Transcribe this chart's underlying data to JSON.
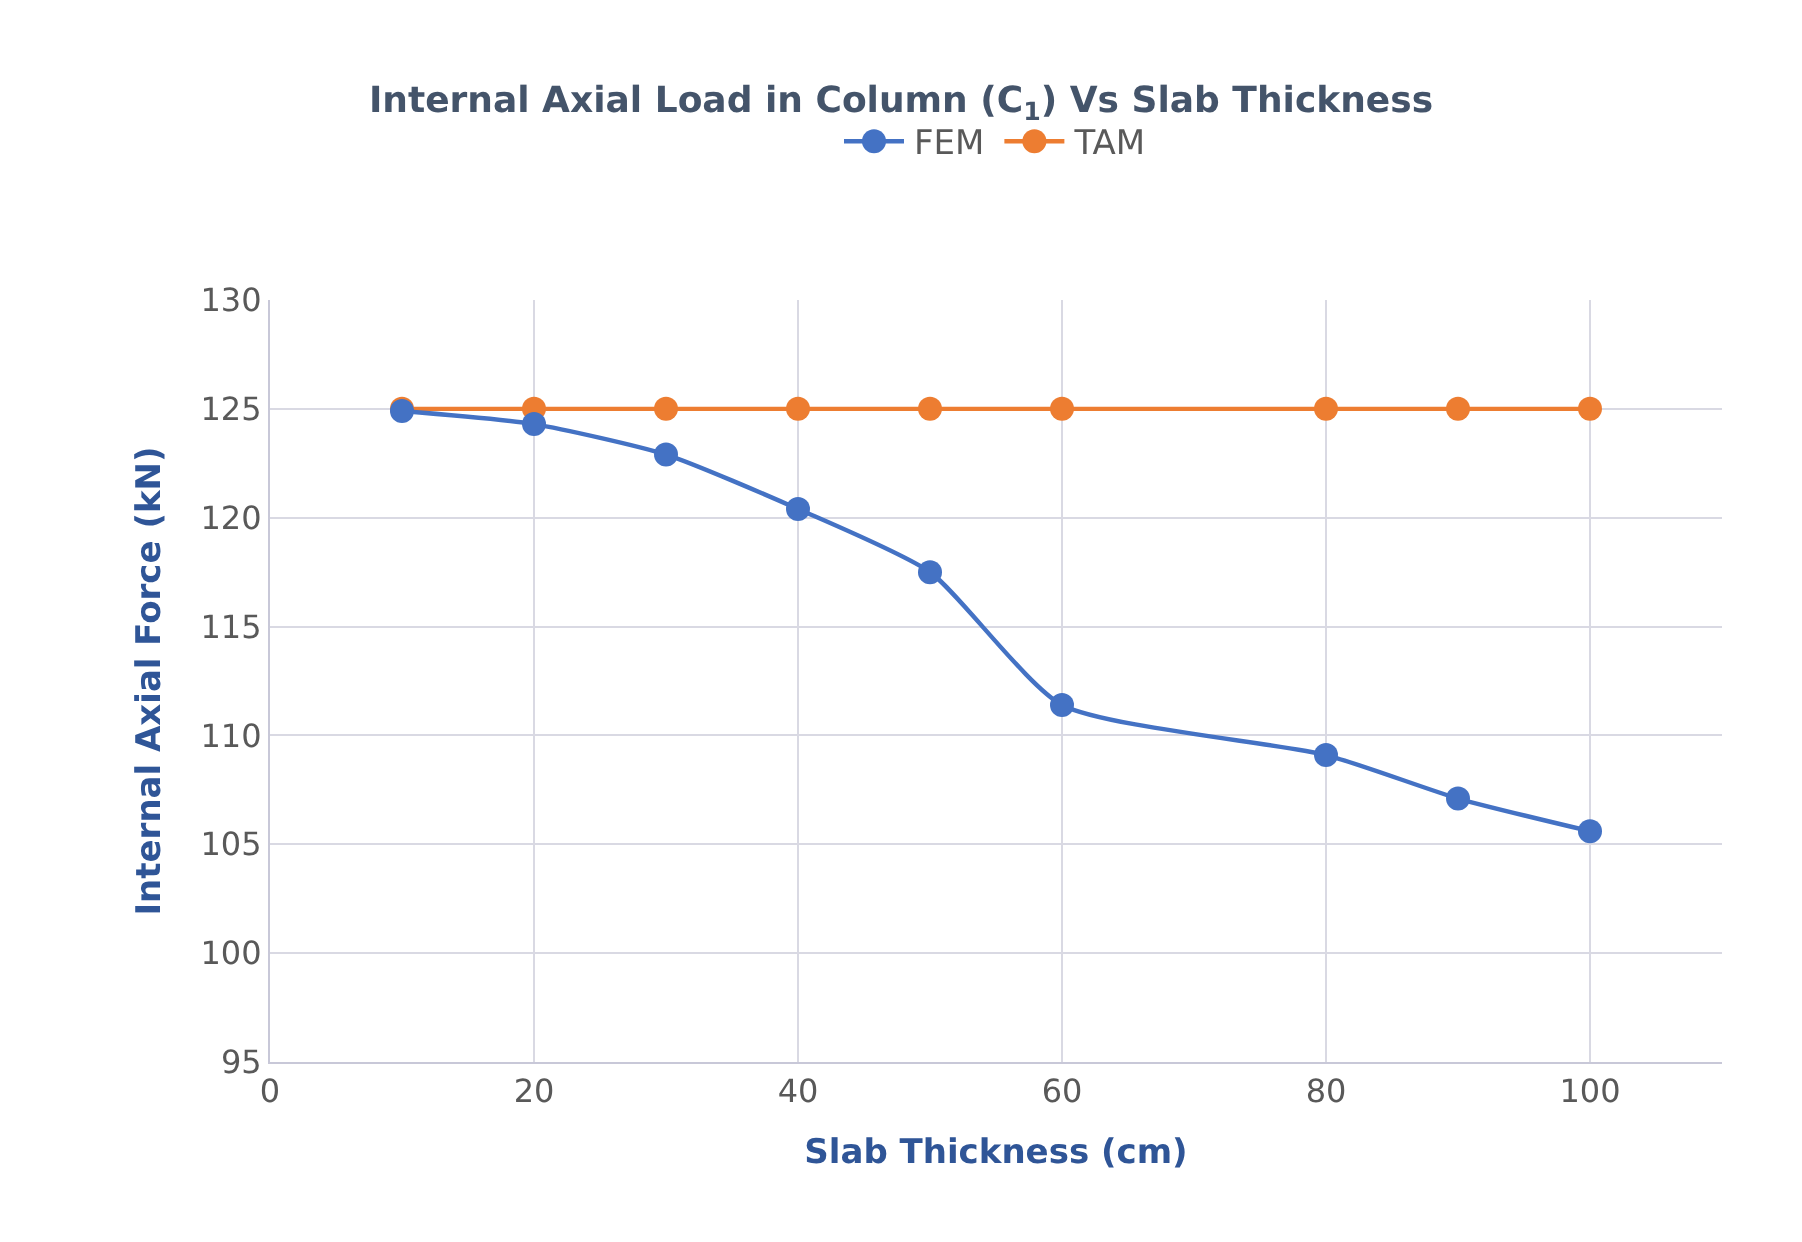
{
  "chart_data": {
    "type": "line",
    "title": "Internal Axial Load in Column (C$_{1}$) Vs Slab Thickness",
    "xlabel": "Slab Thickness (cm)",
    "ylabel": "Internal Axial Force (kN)",
    "x": [
      10,
      20,
      30,
      40,
      50,
      60,
      80,
      90,
      100
    ],
    "series": [
      {
        "name": "FEM",
        "color": "#4472c4",
        "values": [
          124.9,
          124.3,
          122.9,
          120.4,
          117.5,
          111.4,
          109.1,
          107.1,
          105.6
        ]
      },
      {
        "name": "TAM",
        "color": "#ed7d31",
        "values": [
          125,
          125,
          125,
          125,
          125,
          125,
          125,
          125,
          125
        ]
      }
    ],
    "xlim": [
      0,
      110
    ],
    "xticks": [
      0,
      20,
      40,
      60,
      80,
      100
    ],
    "ylim": [
      95,
      130
    ],
    "yticks": [
      95,
      100,
      105,
      110,
      115,
      120,
      125,
      130
    ],
    "grid": true,
    "legend": "top",
    "marker": "circle",
    "line_style": "solid"
  }
}
